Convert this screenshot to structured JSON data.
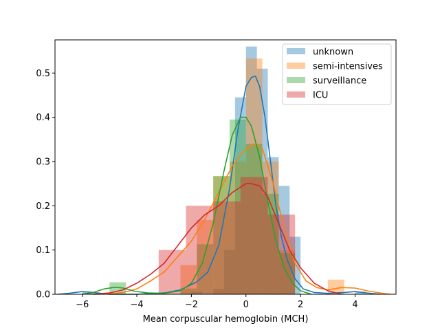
{
  "chart_data": {
    "type": "histogram-kde",
    "xlabel": "Mean corpuscular hemoglobin (MCH)",
    "ylabel": "",
    "xlim": [
      -7.0,
      5.5
    ],
    "ylim": [
      0,
      0.575
    ],
    "xticks": [
      -6,
      -4,
      -2,
      0,
      2,
      4
    ],
    "xtick_labels": [
      "−6",
      "−4",
      "−2",
      "0",
      "2",
      "4"
    ],
    "yticks": [
      0.0,
      0.1,
      0.2,
      0.3,
      0.4,
      0.5
    ],
    "ytick_labels": [
      "0.0",
      "0.1",
      "0.2",
      "0.3",
      "0.4",
      "0.5"
    ],
    "grid": false,
    "legend_position": "top-right",
    "series": [
      {
        "name": "unknown",
        "color": "#1f77b4",
        "hist": [
          {
            "x0": -6.0,
            "x1": -5.6,
            "y": 0.006
          },
          {
            "x0": -2.0,
            "x1": -1.6,
            "y": 0.006
          },
          {
            "x0": -1.2,
            "x1": -0.8,
            "y": 0.012
          },
          {
            "x0": -0.8,
            "x1": -0.4,
            "y": 0.1
          },
          {
            "x0": -0.4,
            "x1": 0.0,
            "y": 0.445
          },
          {
            "x0": 0.0,
            "x1": 0.4,
            "y": 0.56
          },
          {
            "x0": 0.4,
            "x1": 0.8,
            "y": 0.51
          },
          {
            "x0": 0.8,
            "x1": 1.2,
            "y": 0.31
          },
          {
            "x0": 1.2,
            "x1": 1.6,
            "y": 0.245
          },
          {
            "x0": 1.6,
            "x1": 2.0,
            "y": 0.13
          },
          {
            "x0": 4.0,
            "x1": 4.4,
            "y": 0.006
          }
        ],
        "kde": {
          "x": [
            -6.9,
            -6.5,
            -6.0,
            -5.6,
            -5.0,
            -4.0,
            -3.0,
            -2.4,
            -1.8,
            -1.4,
            -1.0,
            -0.6,
            -0.3,
            0.0,
            0.2,
            0.35,
            0.5,
            0.7,
            0.9,
            1.1,
            1.3,
            1.5,
            1.8,
            2.1,
            2.5,
            3.0,
            3.6,
            4.0,
            4.4,
            4.9
          ],
          "y": [
            0.0,
            0.002,
            0.006,
            0.004,
            0.0,
            0.0,
            0.003,
            0.01,
            0.028,
            0.05,
            0.11,
            0.24,
            0.37,
            0.47,
            0.49,
            0.493,
            0.47,
            0.4,
            0.3,
            0.2,
            0.13,
            0.08,
            0.035,
            0.012,
            0.004,
            0.002,
            0.004,
            0.006,
            0.003,
            0.0
          ]
        }
      },
      {
        "name": "semi-intensives",
        "color": "#ff7f0e",
        "hist": [
          {
            "x0": -2.4,
            "x1": -1.8,
            "y": 0.066
          },
          {
            "x0": -1.8,
            "x1": -1.2,
            "y": 0.168
          },
          {
            "x0": -1.2,
            "x1": -0.6,
            "y": 0.267
          },
          {
            "x0": -0.6,
            "x1": 0.0,
            "y": 0.3
          },
          {
            "x0": 0.0,
            "x1": 0.6,
            "y": 0.533
          },
          {
            "x0": 0.6,
            "x1": 1.2,
            "y": 0.3
          },
          {
            "x0": 1.2,
            "x1": 1.8,
            "y": 0.1
          },
          {
            "x0": 3.0,
            "x1": 3.6,
            "y": 0.033
          }
        ],
        "kde": {
          "x": [
            -5.6,
            -5.0,
            -4.5,
            -4.0,
            -3.5,
            -3.0,
            -2.5,
            -2.0,
            -1.5,
            -1.0,
            -0.5,
            0.0,
            0.3,
            0.6,
            1.0,
            1.4,
            1.8,
            2.2,
            2.6,
            3.0,
            3.5,
            4.0,
            4.5,
            5.0,
            5.3
          ],
          "y": [
            0.0,
            0.001,
            0.004,
            0.012,
            0.03,
            0.05,
            0.085,
            0.12,
            0.17,
            0.23,
            0.29,
            0.33,
            0.34,
            0.33,
            0.25,
            0.15,
            0.07,
            0.03,
            0.015,
            0.01,
            0.015,
            0.014,
            0.007,
            0.002,
            0.0
          ]
        }
      },
      {
        "name": "surveillance",
        "color": "#2ca02c",
        "hist": [
          {
            "x0": -5.0,
            "x1": -4.4,
            "y": 0.027
          },
          {
            "x0": -2.4,
            "x1": -1.8,
            "y": 0.013
          },
          {
            "x0": -1.8,
            "x1": -1.2,
            "y": 0.113
          },
          {
            "x0": -1.2,
            "x1": -0.6,
            "y": 0.267
          },
          {
            "x0": -0.6,
            "x1": 0.0,
            "y": 0.395
          },
          {
            "x0": 0.0,
            "x1": 0.6,
            "y": 0.34
          },
          {
            "x0": 0.6,
            "x1": 1.2,
            "y": 0.227
          },
          {
            "x0": 1.2,
            "x1": 1.8,
            "y": 0.093
          }
        ],
        "kde": {
          "x": [
            -6.0,
            -5.6,
            -5.2,
            -4.8,
            -4.5,
            -4.1,
            -3.6,
            -3.0,
            -2.4,
            -2.0,
            -1.6,
            -1.2,
            -0.8,
            -0.5,
            -0.2,
            0.0,
            0.2,
            0.5,
            0.8,
            1.1,
            1.4,
            1.7,
            2.0,
            2.4
          ],
          "y": [
            0.0,
            0.004,
            0.012,
            0.016,
            0.014,
            0.007,
            0.003,
            0.002,
            0.008,
            0.025,
            0.07,
            0.16,
            0.28,
            0.36,
            0.4,
            0.4,
            0.38,
            0.31,
            0.21,
            0.12,
            0.06,
            0.025,
            0.008,
            0.0
          ]
        }
      },
      {
        "name": "ICU",
        "color": "#d62728",
        "hist": [
          {
            "x0": -3.2,
            "x1": -2.2,
            "y": 0.1
          },
          {
            "x0": -2.2,
            "x1": -1.2,
            "y": 0.2
          },
          {
            "x0": -1.2,
            "x1": -0.2,
            "y": 0.21
          },
          {
            "x0": -0.2,
            "x1": 0.8,
            "y": 0.265
          },
          {
            "x0": 0.8,
            "x1": 1.8,
            "y": 0.18
          }
        ],
        "kde": {
          "x": [
            -5.6,
            -5.0,
            -4.5,
            -4.0,
            -3.5,
            -3.0,
            -2.5,
            -2.0,
            -1.5,
            -1.0,
            -0.5,
            0.0,
            0.2,
            0.5,
            0.8,
            1.2,
            1.6,
            2.0,
            2.5,
            3.0,
            3.5
          ],
          "y": [
            0.0,
            0.003,
            0.01,
            0.025,
            0.045,
            0.07,
            0.11,
            0.15,
            0.18,
            0.2,
            0.23,
            0.25,
            0.25,
            0.245,
            0.22,
            0.16,
            0.1,
            0.06,
            0.025,
            0.008,
            0.0
          ]
        }
      }
    ]
  }
}
